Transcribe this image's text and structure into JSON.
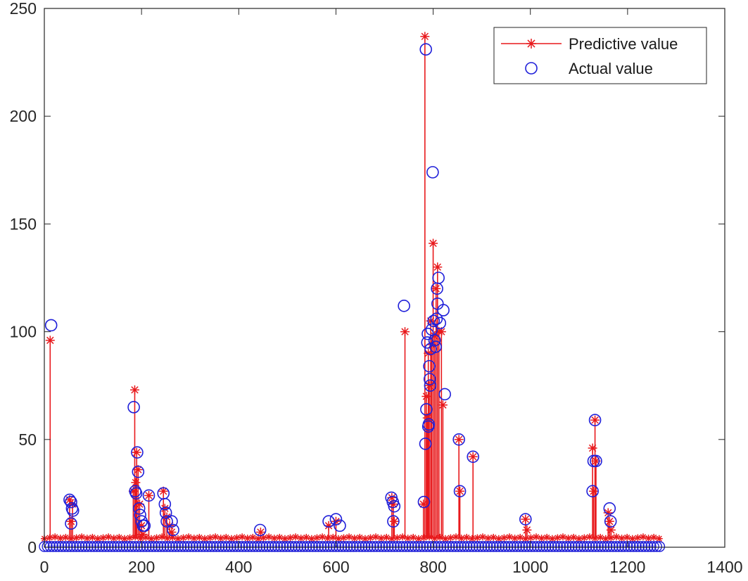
{
  "chart_data": {
    "type": "line",
    "title": "",
    "xlabel": "",
    "ylabel": "",
    "xlim": [
      0,
      1400
    ],
    "ylim": [
      0,
      250
    ],
    "xticks": [
      0,
      200,
      400,
      600,
      800,
      1000,
      1200,
      1400
    ],
    "yticks": [
      0,
      50,
      100,
      150,
      200,
      250
    ],
    "xtick_labels": [
      "0",
      "200",
      "400",
      "600",
      "800",
      "1000",
      "1200",
      "1400"
    ],
    "ytick_labels": [
      "0",
      "50",
      "100",
      "150",
      "200",
      "250"
    ],
    "grid": false,
    "legend_position": "top-right",
    "n_points": 1270,
    "baseline": {
      "predictive_value": 4,
      "actual_value": 0
    },
    "series": [
      {
        "name": "Predictive value",
        "color": "#e8191c",
        "marker": "asterisk",
        "style": "stem",
        "points": [
          [
            12,
            96
          ],
          [
            52,
            22
          ],
          [
            55,
            12
          ],
          [
            58,
            20
          ],
          [
            183,
            26
          ],
          [
            186,
            73
          ],
          [
            188,
            30
          ],
          [
            190,
            44
          ],
          [
            193,
            36
          ],
          [
            196,
            20
          ],
          [
            200,
            10
          ],
          [
            203,
            6
          ],
          [
            215,
            24
          ],
          [
            245,
            26
          ],
          [
            248,
            18
          ],
          [
            252,
            14
          ],
          [
            258,
            10
          ],
          [
            262,
            7
          ],
          [
            445,
            7
          ],
          [
            585,
            10
          ],
          [
            600,
            12
          ],
          [
            715,
            23
          ],
          [
            718,
            20
          ],
          [
            720,
            12
          ],
          [
            742,
            100
          ],
          [
            780,
            20
          ],
          [
            783,
            237
          ],
          [
            786,
            70
          ],
          [
            788,
            60
          ],
          [
            790,
            90
          ],
          [
            792,
            75
          ],
          [
            795,
            105
          ],
          [
            797,
            94
          ],
          [
            800,
            141
          ],
          [
            803,
            98
          ],
          [
            806,
            120
          ],
          [
            809,
            130
          ],
          [
            812,
            100
          ],
          [
            817,
            100
          ],
          [
            820,
            66
          ],
          [
            853,
            50
          ],
          [
            855,
            26
          ],
          [
            882,
            42
          ],
          [
            990,
            13
          ],
          [
            993,
            8
          ],
          [
            1128,
            46
          ],
          [
            1130,
            26
          ],
          [
            1133,
            59
          ],
          [
            1135,
            40
          ],
          [
            1160,
            16
          ],
          [
            1163,
            12
          ],
          [
            1166,
            8
          ]
        ]
      },
      {
        "name": "Actual value",
        "color": "#1f1fd9",
        "marker": "circle",
        "style": "markers",
        "points": [
          [
            14,
            103
          ],
          [
            52,
            22
          ],
          [
            55,
            21
          ],
          [
            57,
            18
          ],
          [
            59,
            17
          ],
          [
            55,
            11
          ],
          [
            184,
            65
          ],
          [
            187,
            26
          ],
          [
            189,
            25
          ],
          [
            191,
            44
          ],
          [
            193,
            35
          ],
          [
            195,
            18
          ],
          [
            197,
            15
          ],
          [
            200,
            12
          ],
          [
            203,
            10
          ],
          [
            206,
            10
          ],
          [
            215,
            24
          ],
          [
            245,
            25
          ],
          [
            248,
            20
          ],
          [
            250,
            16
          ],
          [
            252,
            12
          ],
          [
            262,
            12
          ],
          [
            265,
            8
          ],
          [
            444,
            8
          ],
          [
            585,
            12
          ],
          [
            600,
            13
          ],
          [
            608,
            10
          ],
          [
            714,
            23
          ],
          [
            717,
            21
          ],
          [
            720,
            19
          ],
          [
            718,
            12
          ],
          [
            740,
            112
          ],
          [
            781,
            21
          ],
          [
            785,
            231
          ],
          [
            784,
            48
          ],
          [
            786,
            64
          ],
          [
            788,
            95
          ],
          [
            789,
            99
          ],
          [
            790,
            56
          ],
          [
            791,
            57
          ],
          [
            792,
            84
          ],
          [
            793,
            78
          ],
          [
            794,
            75
          ],
          [
            795,
            92
          ],
          [
            797,
            101
          ],
          [
            799,
            174
          ],
          [
            801,
            105
          ],
          [
            803,
            96
          ],
          [
            805,
            93
          ],
          [
            807,
            106
          ],
          [
            808,
            120
          ],
          [
            809,
            113
          ],
          [
            811,
            125
          ],
          [
            814,
            104
          ],
          [
            821,
            110
          ],
          [
            824,
            71
          ],
          [
            853,
            50
          ],
          [
            855,
            26
          ],
          [
            882,
            42
          ],
          [
            990,
            13
          ],
          [
            1128,
            26
          ],
          [
            1130,
            40
          ],
          [
            1133,
            59
          ],
          [
            1135,
            40
          ],
          [
            1163,
            18
          ],
          [
            1165,
            12
          ]
        ]
      }
    ]
  }
}
